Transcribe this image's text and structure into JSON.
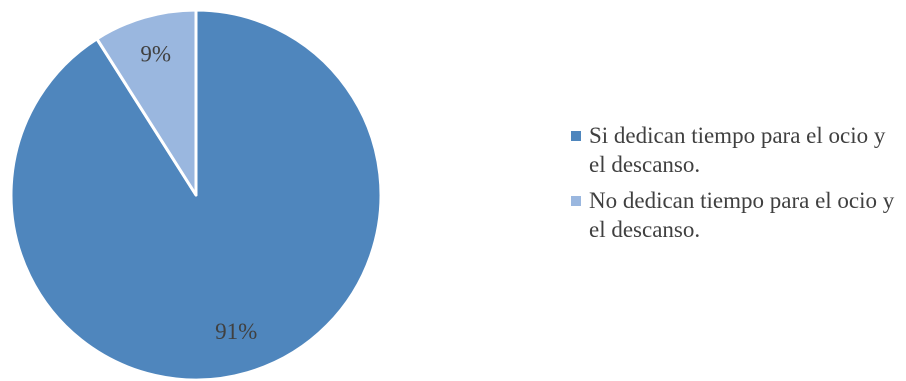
{
  "chart_data": {
    "type": "pie",
    "title": "",
    "slices": [
      {
        "label": "Si dedican tiempo para el ocio y el descanso.",
        "value": 91,
        "display": "91%",
        "color": "#4f86bd"
      },
      {
        "label": "No dedican tiempo para el ocio y el descanso.",
        "value": 9,
        "display": "9%",
        "color": "#9ab7df"
      }
    ],
    "legend_position": "right"
  }
}
